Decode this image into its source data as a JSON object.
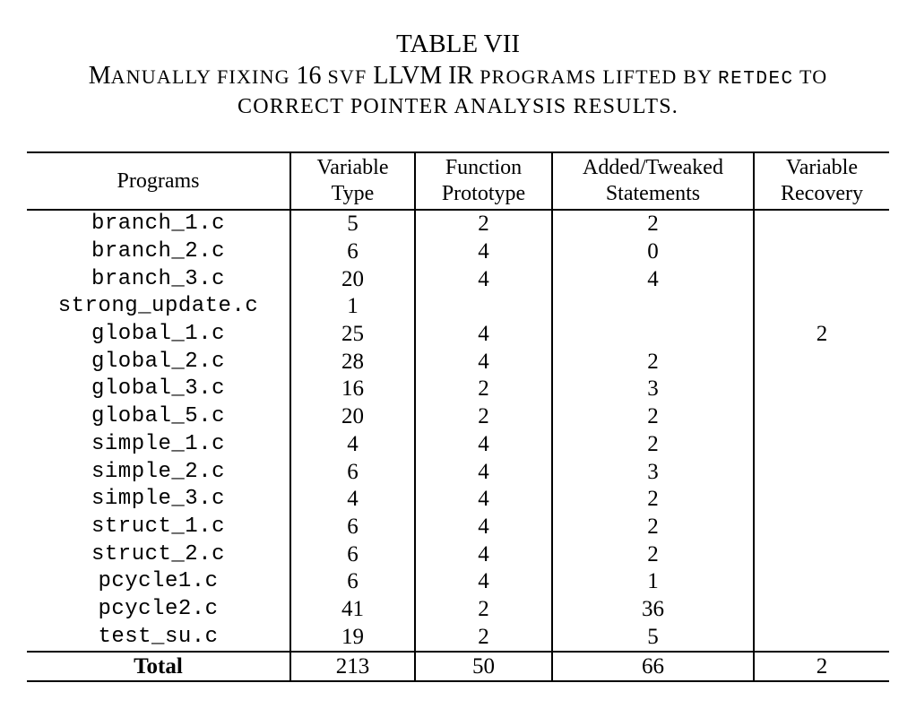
{
  "caption": {
    "label": "TABLE VII",
    "line1": [
      {
        "t": "M",
        "c": ""
      },
      {
        "t": "ANUALLY FIXING ",
        "c": "sc"
      },
      {
        "t": "16 ",
        "c": ""
      },
      {
        "t": "SVF",
        "c": "sc"
      },
      {
        "t": " LLVM IR ",
        "c": ""
      },
      {
        "t": "PROGRAMS LIFTED BY ",
        "c": "sc"
      },
      {
        "t": "RETDEC",
        "c": "mono-sc"
      },
      {
        "t": " TO",
        "c": "sc"
      }
    ],
    "line2": "CORRECT POINTER ANALYSIS RESULTS."
  },
  "table": {
    "headers": [
      [
        "Programs"
      ],
      [
        "Variable",
        "Type"
      ],
      [
        "Function",
        "Prototype"
      ],
      [
        "Added/Tweaked",
        "Statements"
      ],
      [
        "Variable",
        "Recovery"
      ]
    ],
    "rows": [
      [
        "branch_1.c",
        "5",
        "2",
        "2",
        ""
      ],
      [
        "branch_2.c",
        "6",
        "4",
        "0",
        ""
      ],
      [
        "branch_3.c",
        "20",
        "4",
        "4",
        ""
      ],
      [
        "strong_update.c",
        "1",
        "",
        "",
        ""
      ],
      [
        "global_1.c",
        "25",
        "4",
        "",
        "2"
      ],
      [
        "global_2.c",
        "28",
        "4",
        "2",
        ""
      ],
      [
        "global_3.c",
        "16",
        "2",
        "3",
        ""
      ],
      [
        "global_5.c",
        "20",
        "2",
        "2",
        ""
      ],
      [
        "simple_1.c",
        "4",
        "4",
        "2",
        ""
      ],
      [
        "simple_2.c",
        "6",
        "4",
        "3",
        ""
      ],
      [
        "simple_3.c",
        "4",
        "4",
        "2",
        ""
      ],
      [
        "struct_1.c",
        "6",
        "4",
        "2",
        ""
      ],
      [
        "struct_2.c",
        "6",
        "4",
        "2",
        ""
      ],
      [
        "pcycle1.c",
        "6",
        "4",
        "1",
        ""
      ],
      [
        "pcycle2.c",
        "41",
        "2",
        "36",
        ""
      ],
      [
        "test_su.c",
        "19",
        "2",
        "5",
        ""
      ]
    ],
    "total": [
      "Total",
      "213",
      "50",
      "66",
      "2"
    ]
  }
}
